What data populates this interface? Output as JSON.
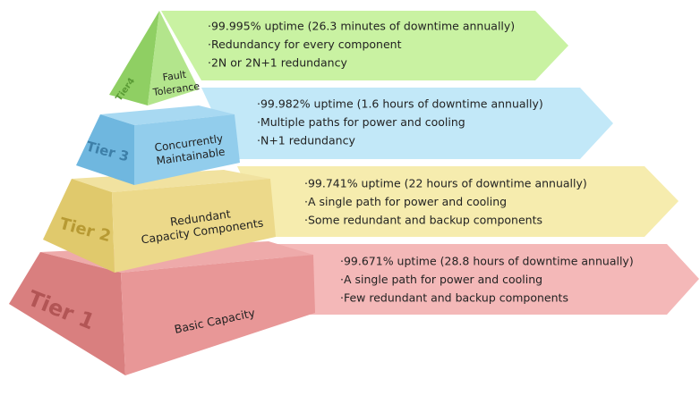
{
  "tiers": [
    {
      "label": "Tier4",
      "name": [
        "Fault",
        "Tolerance"
      ],
      "bullets": [
        "·99.995% uptime (26.3 minutes of downtime annually)",
        "·Redundancy for every component",
        "·2N or 2N+1 redundancy"
      ]
    },
    {
      "label": "Tier 3",
      "name": [
        "Concurrently",
        "Maintainable"
      ],
      "bullets": [
        "·99.982% uptime (1.6 hours of downtime annually)",
        "·Multiple paths for power and cooling",
        "·N+1 redundancy"
      ]
    },
    {
      "label": "Tier 2",
      "name": [
        "Redundant",
        "Capacity Components"
      ],
      "bullets": [
        "·99.741% uptime (22 hours of downtime annually)",
        "·A single path for power and cooling",
        "·Some redundant and backup components"
      ]
    },
    {
      "label": "Tier 1",
      "name": [
        "Basic Capacity"
      ],
      "bullets": [
        "·99.671% uptime (28.8 hours of downtime annually)",
        "·A single path for power and cooling",
        "·Few redundant and backup components"
      ]
    }
  ]
}
